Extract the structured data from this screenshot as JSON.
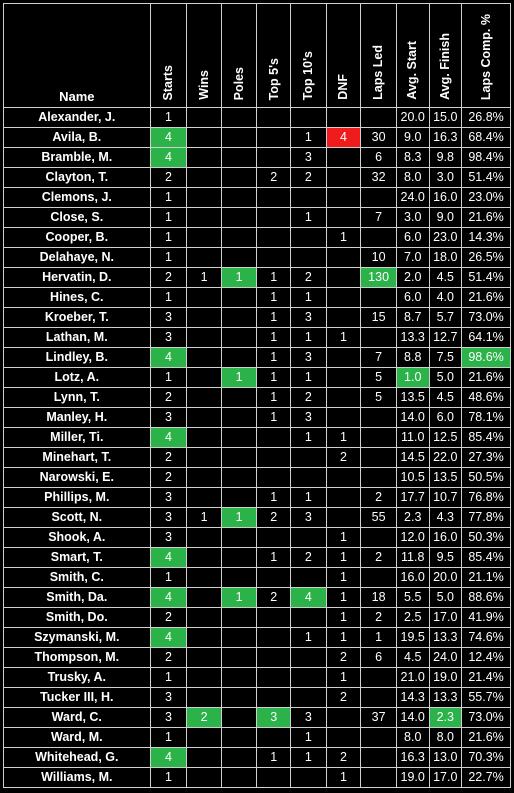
{
  "columns": [
    "Name",
    "Starts",
    "Wins",
    "Poles",
    "Top 5's",
    "Top 10's",
    "DNF",
    "Laps Led",
    "Avg. Start",
    "Avg. Finish",
    "Laps Comp. %"
  ],
  "colors": {
    "highlight_green": "#2bb34a",
    "highlight_red": "#ee1c1c",
    "background": "#000000",
    "text": "#ffffff",
    "border": "#d0d0d0"
  },
  "rows": [
    {
      "name": "Alexander, J.",
      "starts": "1",
      "wins": "",
      "poles": "",
      "top5": "",
      "top10": "",
      "dnf": "",
      "laps_led": "",
      "avg_start": "20.0",
      "avg_finish": "15.0",
      "laps_comp": "26.8%"
    },
    {
      "name": "Avila, B.",
      "starts": "4",
      "wins": "",
      "poles": "",
      "top5": "",
      "top10": "1",
      "dnf": "4",
      "laps_led": "30",
      "avg_start": "9.0",
      "avg_finish": "16.3",
      "laps_comp": "68.4%"
    },
    {
      "name": "Bramble, M.",
      "starts": "4",
      "wins": "",
      "poles": "",
      "top5": "",
      "top10": "3",
      "dnf": "",
      "laps_led": "6",
      "avg_start": "8.3",
      "avg_finish": "9.8",
      "laps_comp": "98.4%"
    },
    {
      "name": "Clayton, T.",
      "starts": "2",
      "wins": "",
      "poles": "",
      "top5": "2",
      "top10": "2",
      "dnf": "",
      "laps_led": "32",
      "avg_start": "8.0",
      "avg_finish": "3.0",
      "laps_comp": "51.4%"
    },
    {
      "name": "Clemons, J.",
      "starts": "1",
      "wins": "",
      "poles": "",
      "top5": "",
      "top10": "",
      "dnf": "",
      "laps_led": "",
      "avg_start": "24.0",
      "avg_finish": "16.0",
      "laps_comp": "23.0%"
    },
    {
      "name": "Close, S.",
      "starts": "1",
      "wins": "",
      "poles": "",
      "top5": "",
      "top10": "1",
      "dnf": "",
      "laps_led": "7",
      "avg_start": "3.0",
      "avg_finish": "9.0",
      "laps_comp": "21.6%"
    },
    {
      "name": "Cooper, B.",
      "starts": "1",
      "wins": "",
      "poles": "",
      "top5": "",
      "top10": "",
      "dnf": "1",
      "laps_led": "",
      "avg_start": "6.0",
      "avg_finish": "23.0",
      "laps_comp": "14.3%"
    },
    {
      "name": "Delahaye, N.",
      "starts": "1",
      "wins": "",
      "poles": "",
      "top5": "",
      "top10": "",
      "dnf": "",
      "laps_led": "10",
      "avg_start": "7.0",
      "avg_finish": "18.0",
      "laps_comp": "26.5%"
    },
    {
      "name": "Hervatin, D.",
      "starts": "2",
      "wins": "1",
      "poles": "1",
      "top5": "1",
      "top10": "2",
      "dnf": "",
      "laps_led": "130",
      "avg_start": "2.0",
      "avg_finish": "4.5",
      "laps_comp": "51.4%"
    },
    {
      "name": "Hines, C.",
      "starts": "1",
      "wins": "",
      "poles": "",
      "top5": "1",
      "top10": "1",
      "dnf": "",
      "laps_led": "",
      "avg_start": "6.0",
      "avg_finish": "4.0",
      "laps_comp": "21.6%"
    },
    {
      "name": "Kroeber, T.",
      "starts": "3",
      "wins": "",
      "poles": "",
      "top5": "1",
      "top10": "3",
      "dnf": "",
      "laps_led": "15",
      "avg_start": "8.7",
      "avg_finish": "5.7",
      "laps_comp": "73.0%"
    },
    {
      "name": "Lathan, M.",
      "starts": "3",
      "wins": "",
      "poles": "",
      "top5": "1",
      "top10": "1",
      "dnf": "1",
      "laps_led": "",
      "avg_start": "13.3",
      "avg_finish": "12.7",
      "laps_comp": "64.1%"
    },
    {
      "name": "Lindley, B.",
      "starts": "4",
      "wins": "",
      "poles": "",
      "top5": "1",
      "top10": "3",
      "dnf": "",
      "laps_led": "7",
      "avg_start": "8.8",
      "avg_finish": "7.5",
      "laps_comp": "98.6%"
    },
    {
      "name": "Lotz, A.",
      "starts": "1",
      "wins": "",
      "poles": "1",
      "top5": "1",
      "top10": "1",
      "dnf": "",
      "laps_led": "5",
      "avg_start": "1.0",
      "avg_finish": "5.0",
      "laps_comp": "21.6%"
    },
    {
      "name": "Lynn, T.",
      "starts": "2",
      "wins": "",
      "poles": "",
      "top5": "1",
      "top10": "2",
      "dnf": "",
      "laps_led": "5",
      "avg_start": "13.5",
      "avg_finish": "4.5",
      "laps_comp": "48.6%"
    },
    {
      "name": "Manley, H.",
      "starts": "3",
      "wins": "",
      "poles": "",
      "top5": "1",
      "top10": "3",
      "dnf": "",
      "laps_led": "",
      "avg_start": "14.0",
      "avg_finish": "6.0",
      "laps_comp": "78.1%"
    },
    {
      "name": "Miller, Ti.",
      "starts": "4",
      "wins": "",
      "poles": "",
      "top5": "",
      "top10": "1",
      "dnf": "1",
      "laps_led": "",
      "avg_start": "11.0",
      "avg_finish": "12.5",
      "laps_comp": "85.4%"
    },
    {
      "name": "Minehart, T.",
      "starts": "2",
      "wins": "",
      "poles": "",
      "top5": "",
      "top10": "",
      "dnf": "2",
      "laps_led": "",
      "avg_start": "14.5",
      "avg_finish": "22.0",
      "laps_comp": "27.3%"
    },
    {
      "name": "Narowski, E.",
      "starts": "2",
      "wins": "",
      "poles": "",
      "top5": "",
      "top10": "",
      "dnf": "",
      "laps_led": "",
      "avg_start": "10.5",
      "avg_finish": "13.5",
      "laps_comp": "50.5%"
    },
    {
      "name": "Phillips, M.",
      "starts": "3",
      "wins": "",
      "poles": "",
      "top5": "1",
      "top10": "1",
      "dnf": "",
      "laps_led": "2",
      "avg_start": "17.7",
      "avg_finish": "10.7",
      "laps_comp": "76.8%"
    },
    {
      "name": "Scott, N.",
      "starts": "3",
      "wins": "1",
      "poles": "1",
      "top5": "2",
      "top10": "3",
      "dnf": "",
      "laps_led": "55",
      "avg_start": "2.3",
      "avg_finish": "4.3",
      "laps_comp": "77.8%"
    },
    {
      "name": "Shook, A.",
      "starts": "3",
      "wins": "",
      "poles": "",
      "top5": "",
      "top10": "",
      "dnf": "1",
      "laps_led": "",
      "avg_start": "12.0",
      "avg_finish": "16.0",
      "laps_comp": "50.3%"
    },
    {
      "name": "Smart, T.",
      "starts": "4",
      "wins": "",
      "poles": "",
      "top5": "1",
      "top10": "2",
      "dnf": "1",
      "laps_led": "2",
      "avg_start": "11.8",
      "avg_finish": "9.5",
      "laps_comp": "85.4%"
    },
    {
      "name": "Smith, C.",
      "starts": "1",
      "wins": "",
      "poles": "",
      "top5": "",
      "top10": "",
      "dnf": "1",
      "laps_led": "",
      "avg_start": "16.0",
      "avg_finish": "20.0",
      "laps_comp": "21.1%"
    },
    {
      "name": "Smith, Da.",
      "starts": "4",
      "wins": "",
      "poles": "1",
      "top5": "2",
      "top10": "4",
      "dnf": "1",
      "laps_led": "18",
      "avg_start": "5.5",
      "avg_finish": "5.0",
      "laps_comp": "88.6%"
    },
    {
      "name": "Smith, Do.",
      "starts": "2",
      "wins": "",
      "poles": "",
      "top5": "",
      "top10": "",
      "dnf": "1",
      "laps_led": "2",
      "avg_start": "2.5",
      "avg_finish": "17.0",
      "laps_comp": "41.9%"
    },
    {
      "name": "Szymanski, M.",
      "starts": "4",
      "wins": "",
      "poles": "",
      "top5": "",
      "top10": "1",
      "dnf": "1",
      "laps_led": "1",
      "avg_start": "19.5",
      "avg_finish": "13.3",
      "laps_comp": "74.6%"
    },
    {
      "name": "Thompson, M.",
      "starts": "2",
      "wins": "",
      "poles": "",
      "top5": "",
      "top10": "",
      "dnf": "2",
      "laps_led": "6",
      "avg_start": "4.5",
      "avg_finish": "24.0",
      "laps_comp": "12.4%"
    },
    {
      "name": "Trusky, A.",
      "starts": "1",
      "wins": "",
      "poles": "",
      "top5": "",
      "top10": "",
      "dnf": "1",
      "laps_led": "",
      "avg_start": "21.0",
      "avg_finish": "19.0",
      "laps_comp": "21.4%"
    },
    {
      "name": "Tucker III, H.",
      "starts": "3",
      "wins": "",
      "poles": "",
      "top5": "",
      "top10": "",
      "dnf": "2",
      "laps_led": "",
      "avg_start": "14.3",
      "avg_finish": "13.3",
      "laps_comp": "55.7%"
    },
    {
      "name": "Ward, C.",
      "starts": "3",
      "wins": "2",
      "poles": "",
      "top5": "3",
      "top10": "3",
      "dnf": "",
      "laps_led": "37",
      "avg_start": "14.0",
      "avg_finish": "2.3",
      "laps_comp": "73.0%"
    },
    {
      "name": "Ward, M.",
      "starts": "1",
      "wins": "",
      "poles": "",
      "top5": "",
      "top10": "1",
      "dnf": "",
      "laps_led": "",
      "avg_start": "8.0",
      "avg_finish": "8.0",
      "laps_comp": "21.6%"
    },
    {
      "name": "Whitehead, G.",
      "starts": "4",
      "wins": "",
      "poles": "",
      "top5": "1",
      "top10": "1",
      "dnf": "2",
      "laps_led": "",
      "avg_start": "16.3",
      "avg_finish": "13.0",
      "laps_comp": "70.3%"
    },
    {
      "name": "Williams, M.",
      "starts": "1",
      "wins": "",
      "poles": "",
      "top5": "",
      "top10": "",
      "dnf": "1",
      "laps_led": "",
      "avg_start": "19.0",
      "avg_finish": "17.0",
      "laps_comp": "22.7%"
    }
  ],
  "highlights": [
    {
      "row": 1,
      "field": "starts",
      "color": "green"
    },
    {
      "row": 1,
      "field": "dnf",
      "color": "red"
    },
    {
      "row": 2,
      "field": "starts",
      "color": "green"
    },
    {
      "row": 8,
      "field": "poles",
      "color": "green"
    },
    {
      "row": 8,
      "field": "laps_led",
      "color": "green"
    },
    {
      "row": 12,
      "field": "starts",
      "color": "green"
    },
    {
      "row": 12,
      "field": "laps_comp",
      "color": "green"
    },
    {
      "row": 13,
      "field": "poles",
      "color": "green"
    },
    {
      "row": 13,
      "field": "avg_start",
      "color": "green"
    },
    {
      "row": 16,
      "field": "starts",
      "color": "green"
    },
    {
      "row": 20,
      "field": "poles",
      "color": "green"
    },
    {
      "row": 22,
      "field": "starts",
      "color": "green"
    },
    {
      "row": 24,
      "field": "starts",
      "color": "green"
    },
    {
      "row": 24,
      "field": "poles",
      "color": "green"
    },
    {
      "row": 24,
      "field": "top10",
      "color": "green"
    },
    {
      "row": 26,
      "field": "starts",
      "color": "green"
    },
    {
      "row": 30,
      "field": "wins",
      "color": "green"
    },
    {
      "row": 30,
      "field": "top5",
      "color": "green"
    },
    {
      "row": 30,
      "field": "avg_finish",
      "color": "green"
    },
    {
      "row": 32,
      "field": "starts",
      "color": "green"
    }
  ]
}
